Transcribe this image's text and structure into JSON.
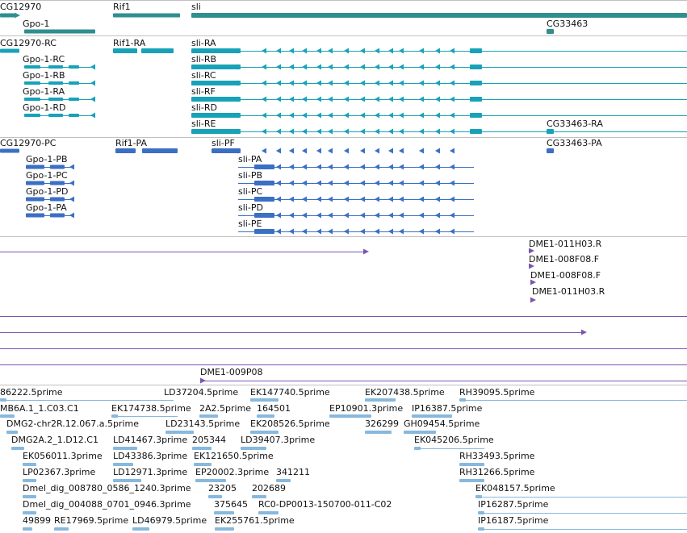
{
  "colors": {
    "gene": "#2f8f8f",
    "transcript": "#17a2b8",
    "protein": "#3a6fc4",
    "clone": "#7a55b0",
    "est": "#88b8dc",
    "divider": "#c0c0c0"
  },
  "tracks": {
    "genes": {
      "rows": [
        {
          "labels": [
            {
              "text": "CG12970"
            },
            {
              "text": "Rif1"
            },
            {
              "text": "sli"
            }
          ]
        },
        {
          "labels": [
            {
              "text": "Gpo-1"
            },
            {
              "text": "CG33463"
            }
          ]
        }
      ]
    },
    "transcripts": {
      "rows": [
        {
          "labels": [
            {
              "text": "CG12970-RC"
            },
            {
              "text": "Rif1-RA"
            },
            {
              "text": "sli-RA"
            }
          ]
        },
        {
          "labels": [
            {
              "text": "Gpo-1-RC"
            },
            {
              "text": "sli-RB"
            }
          ]
        },
        {
          "labels": [
            {
              "text": "Gpo-1-RB"
            },
            {
              "text": "sli-RC"
            }
          ]
        },
        {
          "labels": [
            {
              "text": "Gpo-1-RA"
            },
            {
              "text": "sli-RF"
            }
          ]
        },
        {
          "labels": [
            {
              "text": "Gpo-1-RD"
            },
            {
              "text": "sli-RD"
            }
          ]
        },
        {
          "labels": [
            {
              "text": "sli-RE"
            },
            {
              "text": "CG33463-RA"
            }
          ]
        }
      ]
    },
    "proteins": {
      "rows": [
        {
          "labels": [
            {
              "text": "CG12970-PC"
            },
            {
              "text": "Rif1-PA"
            },
            {
              "text": "sli-PF"
            },
            {
              "text": "CG33463-PA"
            }
          ]
        },
        {
          "labels": [
            {
              "text": "Gpo-1-PB"
            },
            {
              "text": "sli-PA"
            }
          ]
        },
        {
          "labels": [
            {
              "text": "Gpo-1-PC"
            },
            {
              "text": "sli-PB"
            }
          ]
        },
        {
          "labels": [
            {
              "text": "Gpo-1-PD"
            },
            {
              "text": "sli-PC"
            }
          ]
        },
        {
          "labels": [
            {
              "text": "Gpo-1-PA"
            },
            {
              "text": "sli-PD"
            }
          ]
        },
        {
          "labels": [
            {
              "text": "sli-PE"
            }
          ]
        }
      ]
    },
    "clones": {
      "rows": [
        {
          "labels": [
            {
              "text": "DME1-011H03.R"
            }
          ]
        },
        {
          "labels": [
            {
              "text": "DME1-008F08.F"
            }
          ]
        },
        {
          "labels": [
            {
              "text": "DME1-008F08.F"
            }
          ]
        },
        {
          "labels": [
            {
              "text": "DME1-011H03.R"
            }
          ]
        }
      ]
    },
    "long_clones": {
      "rows": [
        {
          "labels": []
        },
        {
          "labels": []
        },
        {
          "labels": []
        },
        {
          "labels": [
            {
              "text": "DME1-009P08"
            }
          ]
        }
      ]
    },
    "ests": {
      "rows": [
        {
          "labels": [
            {
              "text": "86222.5prime"
            },
            {
              "text": "LD37204.5prime"
            },
            {
              "text": "EK147740.5prime"
            },
            {
              "text": "EK207438.5prime"
            },
            {
              "text": "RH39095.5prime"
            }
          ]
        },
        {
          "labels": [
            {
              "text": "MB6A.1_1.C03.C1"
            },
            {
              "text": "EK174738.5prime"
            },
            {
              "text": "2A2.5prime"
            },
            {
              "text": "164501"
            },
            {
              "text": "EP10901.3prime"
            },
            {
              "text": "IP16387.5prime"
            }
          ]
        },
        {
          "labels": [
            {
              "text": "DMG2-chr2R.12.067.a.5prime"
            },
            {
              "text": "LD23143.5prime"
            },
            {
              "text": "EK208526.5prime"
            },
            {
              "text": "326299"
            },
            {
              "text": "GH09454.5prime"
            }
          ]
        },
        {
          "labels": [
            {
              "text": "DMG2A.2_1.D12.C1"
            },
            {
              "text": "LD41467.3prime"
            },
            {
              "text": "205344"
            },
            {
              "text": "LD39407.3prime"
            },
            {
              "text": "EK045206.5prime"
            }
          ]
        },
        {
          "labels": [
            {
              "text": "EK056011.3prime"
            },
            {
              "text": "LD43386.3prime"
            },
            {
              "text": "EK121650.5prime"
            },
            {
              "text": "RH33493.5prime"
            }
          ]
        },
        {
          "labels": [
            {
              "text": "LP02367.3prime"
            },
            {
              "text": "LD12971.3prime"
            },
            {
              "text": "EP20002.3prime"
            },
            {
              "text": "341211"
            },
            {
              "text": "RH31266.5prime"
            }
          ]
        },
        {
          "labels": [
            {
              "text": "Dmel_dig_008780_0586_1240.3prime"
            },
            {
              "text": "23205"
            },
            {
              "text": "202689"
            },
            {
              "text": "EK048157.5prime"
            }
          ]
        },
        {
          "labels": [
            {
              "text": "Dmel_dig_004088_0701_0946.3prime"
            },
            {
              "text": "375645"
            },
            {
              "text": "RC0-DP0013-150700-011-C02"
            },
            {
              "text": "IP16287.5prime"
            }
          ]
        },
        {
          "labels": [
            {
              "text": "49899"
            },
            {
              "text": "RE17969.5prime"
            },
            {
              "text": "LD46979.5prime"
            },
            {
              "text": "EK255761.5prime"
            },
            {
              "text": "IP16187.5prime"
            }
          ]
        }
      ]
    }
  }
}
